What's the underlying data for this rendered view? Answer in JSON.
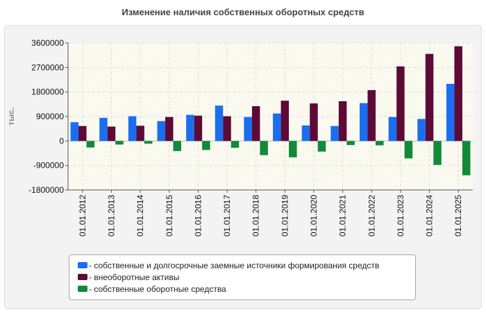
{
  "chart_data": {
    "type": "bar",
    "title": "Изменение наличия собственных оборотных средств",
    "ylabel": "тыс.",
    "xlabel": "",
    "ylim": [
      -1800000,
      3600000
    ],
    "yticks": [
      3600000,
      2700000,
      1800000,
      900000,
      0,
      -900000,
      -1800000
    ],
    "ytick_labels": [
      "3600000",
      "2700000",
      "1800000",
      "900000",
      "0",
      "-900000",
      "-1800000"
    ],
    "categories": [
      "01.01.2012",
      "01.01.2013",
      "01.01.2014",
      "01.01.2015",
      "01.01.2016",
      "01.01.2017",
      "01.01.2018",
      "01.01.2019",
      "01.01.2020",
      "01.01.2021",
      "01.01.2022",
      "01.01.2023",
      "01.01.2024",
      "01.01.2025"
    ],
    "series": [
      {
        "name": "- собственные и долгосрочные заемные источники формирования средств",
        "color": "#1a6ff0",
        "values": [
          690000,
          850000,
          910000,
          730000,
          960000,
          1300000,
          880000,
          1010000,
          570000,
          550000,
          1390000,
          880000,
          810000,
          2100000
        ]
      },
      {
        "name": "- внеоборотные активы",
        "color": "#5e0a36",
        "values": [
          550000,
          530000,
          560000,
          880000,
          930000,
          910000,
          1280000,
          1480000,
          1380000,
          1460000,
          1870000,
          2740000,
          3200000,
          3480000
        ]
      },
      {
        "name": "- собственные оборотные средства",
        "color": "#118a3a",
        "values": [
          -240000,
          -130000,
          -100000,
          -370000,
          -330000,
          -250000,
          -520000,
          -600000,
          -390000,
          -150000,
          -160000,
          -640000,
          -880000,
          -1260000
        ]
      }
    ]
  }
}
